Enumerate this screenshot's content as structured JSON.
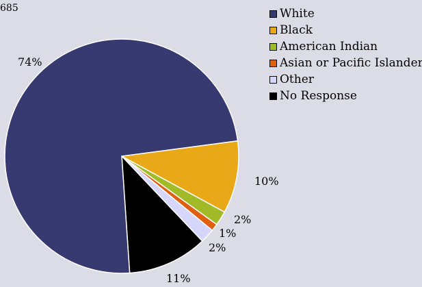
{
  "header_value": "685",
  "colors": {
    "background": "#dcdce6"
  },
  "chart_data": {
    "type": "pie",
    "legend_position": "top-right",
    "slices": [
      {
        "name": "White",
        "value": 74,
        "label": "74%",
        "color": "#363a70"
      },
      {
        "name": "Black",
        "value": 10,
        "label": "10%",
        "color": "#e8a818"
      },
      {
        "name": "American Indian",
        "value": 2,
        "label": "2%",
        "color": "#a3ba28"
      },
      {
        "name": "Asian or Pacific Islander",
        "value": 1,
        "label": "1%",
        "color": "#e06012"
      },
      {
        "name": "Other",
        "value": 2,
        "label": "2%",
        "color": "#d6d6fa"
      },
      {
        "name": "No Response",
        "value": 11,
        "label": "11%",
        "color": "#000000"
      }
    ]
  }
}
